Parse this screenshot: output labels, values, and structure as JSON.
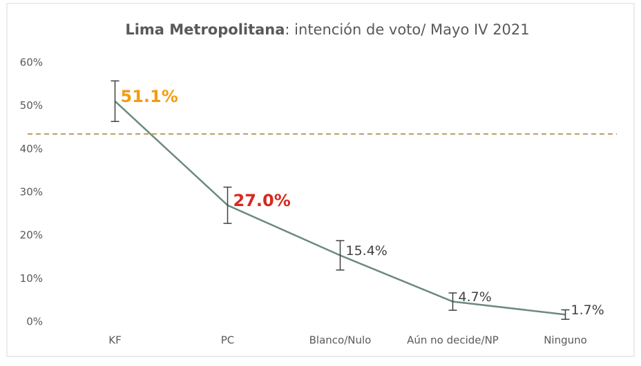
{
  "chart_data": {
    "type": "line",
    "title_bold": "Lima Metropolitana",
    "title_rest": ": intención de voto/ Mayo IV 2021",
    "categories": [
      "KF",
      "PC",
      "Blanco/Nulo",
      "Aún no decide/NP",
      "Ninguno"
    ],
    "series": [
      {
        "name": "Intención de voto",
        "color": "#6b8a7a",
        "values": [
          51.1,
          27.0,
          15.4,
          4.7,
          1.7
        ],
        "value_labels": [
          "51.1%",
          "27.0%",
          "15.4%",
          "4.7%",
          "1.7%"
        ],
        "errors": [
          4.7,
          4.2,
          3.4,
          2.0,
          1.1
        ],
        "label_colors": [
          "#f39c12",
          "#d62a1e",
          "#404040",
          "#404040",
          "#404040"
        ],
        "label_bold": [
          true,
          true,
          false,
          false,
          false
        ]
      }
    ],
    "reference_line": 43.5,
    "reference_color": "#b8965a",
    "ylim": [
      0,
      60
    ],
    "yticks": [
      {
        "value": 0,
        "label": "0%"
      },
      {
        "value": 10,
        "label": "10%"
      },
      {
        "value": 20,
        "label": "20%"
      },
      {
        "value": 30,
        "label": "30%"
      },
      {
        "value": 40,
        "label": "40%"
      },
      {
        "value": 50,
        "label": "50%"
      },
      {
        "value": 60,
        "label": "60%"
      }
    ],
    "grid": false
  }
}
